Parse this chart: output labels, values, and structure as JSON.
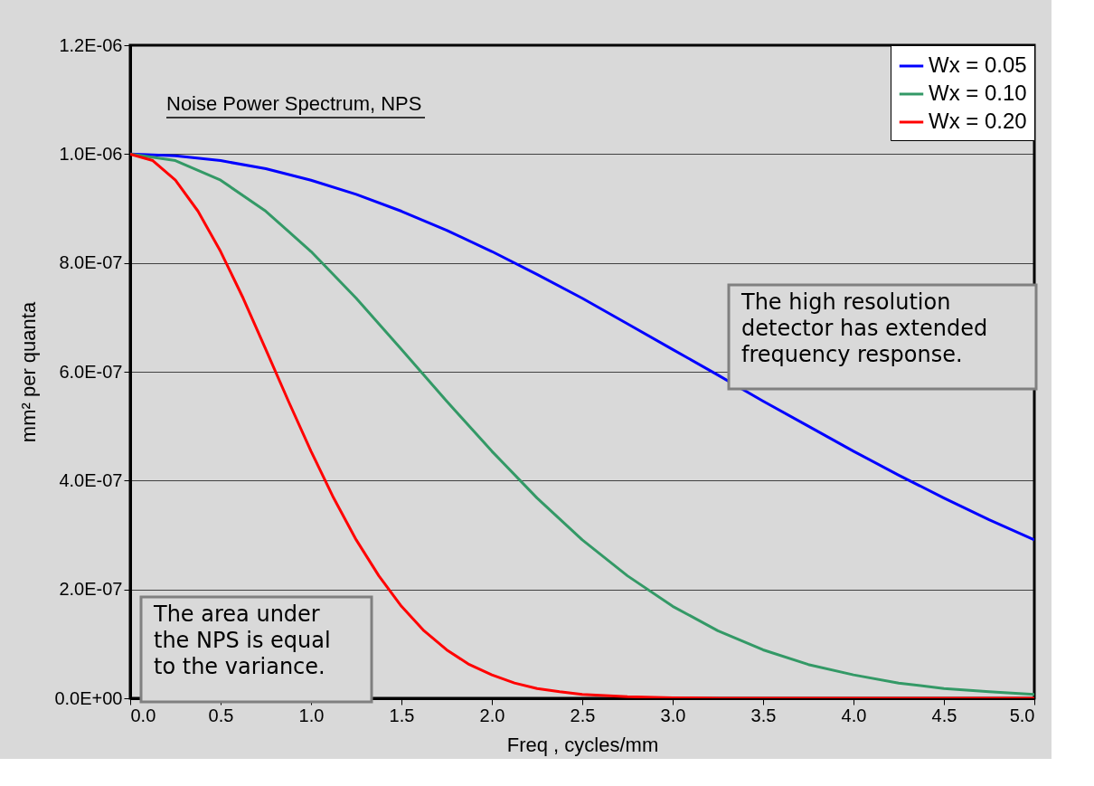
{
  "chart_data": {
    "type": "line",
    "xlabel": "Freq , cycles/mm",
    "ylabel": "mm² per quanta",
    "annotations": [
      "Noise Power Spectrum, NPS",
      "The high resolution\ndetector has extended\nfrequency response.",
      "The area under\nthe NPS is equal\nto the variance."
    ],
    "series": [
      {
        "name": "Wx = 0.05",
        "color": "#0000ff",
        "x": [
          0,
          0.25,
          0.5,
          0.75,
          1.0,
          1.25,
          1.5,
          1.75,
          2.0,
          2.25,
          2.5,
          2.75,
          3.0,
          3.25,
          3.5,
          3.75,
          4.0,
          4.25,
          4.5,
          4.75,
          5.0
        ],
        "values": [
          1e-06,
          9.97e-07,
          9.88e-07,
          9.73e-07,
          9.52e-07,
          9.26e-07,
          8.95e-07,
          8.6e-07,
          8.21e-07,
          7.79e-07,
          7.35e-07,
          6.88e-07,
          6.41e-07,
          5.94e-07,
          5.46e-07,
          5e-07,
          4.54e-07,
          4.1e-07,
          3.68e-07,
          3.28e-07,
          2.91e-07
        ]
      },
      {
        "name": "Wx = 0.10",
        "color": "#339966",
        "x": [
          0,
          0.25,
          0.5,
          0.75,
          1.0,
          1.25,
          1.5,
          1.75,
          2.0,
          2.25,
          2.5,
          2.75,
          3.0,
          3.25,
          3.5,
          3.75,
          4.0,
          4.25,
          4.5,
          4.75,
          5.0
        ],
        "values": [
          1e-06,
          9.88e-07,
          9.52e-07,
          8.95e-07,
          8.21e-07,
          7.35e-07,
          6.41e-07,
          5.46e-07,
          4.54e-07,
          3.68e-07,
          2.91e-07,
          2.25e-07,
          1.69e-07,
          1.24e-07,
          8.9e-08,
          6.2e-08,
          4.3e-08,
          2.8e-08,
          1.8e-08,
          1.2e-08,
          7e-09
        ]
      },
      {
        "name": "Wx = 0.20",
        "color": "#ff0000",
        "x": [
          0,
          0.125,
          0.25,
          0.375,
          0.5,
          0.625,
          0.75,
          0.875,
          1.0,
          1.125,
          1.25,
          1.375,
          1.5,
          1.625,
          1.75,
          1.875,
          2.0,
          2.125,
          2.25,
          2.375,
          2.5,
          2.75,
          3.0,
          3.25,
          3.5,
          3.75,
          4.0,
          4.25,
          4.5,
          4.75,
          5.0
        ],
        "values": [
          1e-06,
          9.88e-07,
          9.52e-07,
          8.95e-07,
          8.21e-07,
          7.35e-07,
          6.41e-07,
          5.46e-07,
          4.54e-07,
          3.68e-07,
          2.91e-07,
          2.25e-07,
          1.69e-07,
          1.24e-07,
          8.9e-08,
          6.2e-08,
          4.3e-08,
          2.8e-08,
          1.8e-08,
          1.2e-08,
          7e-09,
          3e-09,
          1e-09,
          0,
          0,
          0,
          0,
          0,
          0,
          0,
          0
        ]
      }
    ],
    "xlim": [
      0,
      5
    ],
    "ylim": [
      0,
      1.2e-06
    ],
    "xticks": [
      {
        "value": 0,
        "label": "0.0"
      },
      {
        "value": 0.5,
        "label": "0.5"
      },
      {
        "value": 1,
        "label": "1.0"
      },
      {
        "value": 1.5,
        "label": "1.5"
      },
      {
        "value": 2,
        "label": "2.0"
      },
      {
        "value": 2.5,
        "label": "2.5"
      },
      {
        "value": 3,
        "label": "3.0"
      },
      {
        "value": 3.5,
        "label": "3.5"
      },
      {
        "value": 4,
        "label": "4.0"
      },
      {
        "value": 4.5,
        "label": "4.5"
      },
      {
        "value": 5,
        "label": "5.0"
      }
    ],
    "yticks": [
      {
        "value": 0,
        "label": "0.0E+00"
      },
      {
        "value": 2e-07,
        "label": "2.0E-07"
      },
      {
        "value": 4e-07,
        "label": "4.0E-07"
      },
      {
        "value": 6e-07,
        "label": "6.0E-07"
      },
      {
        "value": 8e-07,
        "label": "8.0E-07"
      },
      {
        "value": 1e-06,
        "label": "1.0E-06"
      },
      {
        "value": 1.2e-06,
        "label": "1.2E-06"
      }
    ],
    "grid": "y",
    "legend": "top right",
    "marker": "none",
    "line_style": "solid"
  }
}
